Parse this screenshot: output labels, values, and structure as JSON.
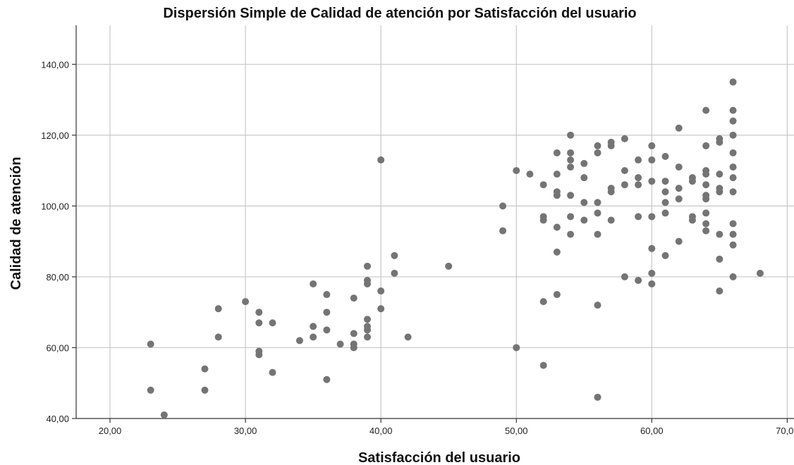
{
  "chart_data": {
    "type": "scatter",
    "title": "Dispersión Simple de Calidad de atención por Satisfacción del usuario",
    "xlabel": "Satisfacción del usuario",
    "ylabel": "Calidad de atención",
    "xlim": [
      17.5,
      70.5
    ],
    "ylim": [
      40,
      151
    ],
    "xticks": [
      "20,00",
      "30,00",
      "40,00",
      "50,00",
      "60,00",
      "70,00"
    ],
    "yticks": [
      "40,00",
      "60,00",
      "80,00",
      "100,00",
      "120,00",
      "140,00"
    ],
    "grid": true,
    "point_color": "#747474",
    "points": [
      [
        23,
        61
      ],
      [
        23,
        48
      ],
      [
        24,
        41
      ],
      [
        27,
        54
      ],
      [
        27,
        48
      ],
      [
        28,
        71
      ],
      [
        28,
        63
      ],
      [
        30,
        73
      ],
      [
        31,
        70
      ],
      [
        31,
        67
      ],
      [
        31,
        59
      ],
      [
        31,
        58
      ],
      [
        32,
        67
      ],
      [
        32,
        53
      ],
      [
        34,
        62
      ],
      [
        35,
        78
      ],
      [
        35,
        66
      ],
      [
        35,
        63
      ],
      [
        36,
        75
      ],
      [
        36,
        70
      ],
      [
        36,
        65
      ],
      [
        36,
        51
      ],
      [
        37,
        61
      ],
      [
        38,
        74
      ],
      [
        38,
        64
      ],
      [
        38,
        61
      ],
      [
        38,
        60
      ],
      [
        39,
        83
      ],
      [
        39,
        79
      ],
      [
        39,
        78
      ],
      [
        39,
        68
      ],
      [
        39,
        66
      ],
      [
        39,
        65
      ],
      [
        39,
        63
      ],
      [
        40,
        113
      ],
      [
        40,
        76
      ],
      [
        40,
        71
      ],
      [
        41,
        86
      ],
      [
        41,
        81
      ],
      [
        42,
        63
      ],
      [
        45,
        83
      ],
      [
        49,
        100
      ],
      [
        49,
        93
      ],
      [
        50,
        110
      ],
      [
        50,
        60
      ],
      [
        51,
        109
      ],
      [
        52,
        106
      ],
      [
        52,
        97
      ],
      [
        52,
        96
      ],
      [
        52,
        73
      ],
      [
        52,
        55
      ],
      [
        53,
        115
      ],
      [
        53,
        109
      ],
      [
        53,
        104
      ],
      [
        53,
        103
      ],
      [
        53,
        94
      ],
      [
        53,
        87
      ],
      [
        53,
        75
      ],
      [
        54,
        120
      ],
      [
        54,
        115
      ],
      [
        54,
        113
      ],
      [
        54,
        111
      ],
      [
        54,
        103
      ],
      [
        54,
        97
      ],
      [
        54,
        92
      ],
      [
        55,
        112
      ],
      [
        55,
        108
      ],
      [
        55,
        101
      ],
      [
        55,
        96
      ],
      [
        56,
        117
      ],
      [
        56,
        115
      ],
      [
        56,
        101
      ],
      [
        56,
        98
      ],
      [
        56,
        92
      ],
      [
        56,
        72
      ],
      [
        56,
        46
      ],
      [
        57,
        118
      ],
      [
        57,
        117
      ],
      [
        57,
        105
      ],
      [
        57,
        104
      ],
      [
        57,
        96
      ],
      [
        58,
        119
      ],
      [
        58,
        110
      ],
      [
        58,
        106
      ],
      [
        58,
        80
      ],
      [
        59,
        113
      ],
      [
        59,
        108
      ],
      [
        59,
        106
      ],
      [
        59,
        97
      ],
      [
        59,
        79
      ],
      [
        60,
        117
      ],
      [
        60,
        113
      ],
      [
        60,
        107
      ],
      [
        60,
        97
      ],
      [
        60,
        88
      ],
      [
        60,
        81
      ],
      [
        60,
        78
      ],
      [
        61,
        114
      ],
      [
        61,
        107
      ],
      [
        61,
        104
      ],
      [
        61,
        101
      ],
      [
        61,
        98
      ],
      [
        61,
        86
      ],
      [
        62,
        122
      ],
      [
        62,
        111
      ],
      [
        62,
        105
      ],
      [
        62,
        102
      ],
      [
        62,
        90
      ],
      [
        63,
        108
      ],
      [
        63,
        107
      ],
      [
        63,
        97
      ],
      [
        63,
        96
      ],
      [
        64,
        127
      ],
      [
        64,
        117
      ],
      [
        64,
        110
      ],
      [
        64,
        109
      ],
      [
        64,
        106
      ],
      [
        64,
        103
      ],
      [
        64,
        102
      ],
      [
        64,
        98
      ],
      [
        64,
        95
      ],
      [
        64,
        93
      ],
      [
        65,
        119
      ],
      [
        65,
        118
      ],
      [
        65,
        109
      ],
      [
        65,
        105
      ],
      [
        65,
        104
      ],
      [
        65,
        92
      ],
      [
        65,
        85
      ],
      [
        65,
        76
      ],
      [
        66,
        135
      ],
      [
        66,
        127
      ],
      [
        66,
        124
      ],
      [
        66,
        120
      ],
      [
        66,
        115
      ],
      [
        66,
        111
      ],
      [
        66,
        108
      ],
      [
        66,
        104
      ],
      [
        66,
        95
      ],
      [
        66,
        92
      ],
      [
        66,
        89
      ],
      [
        66,
        80
      ],
      [
        68,
        81
      ]
    ]
  }
}
